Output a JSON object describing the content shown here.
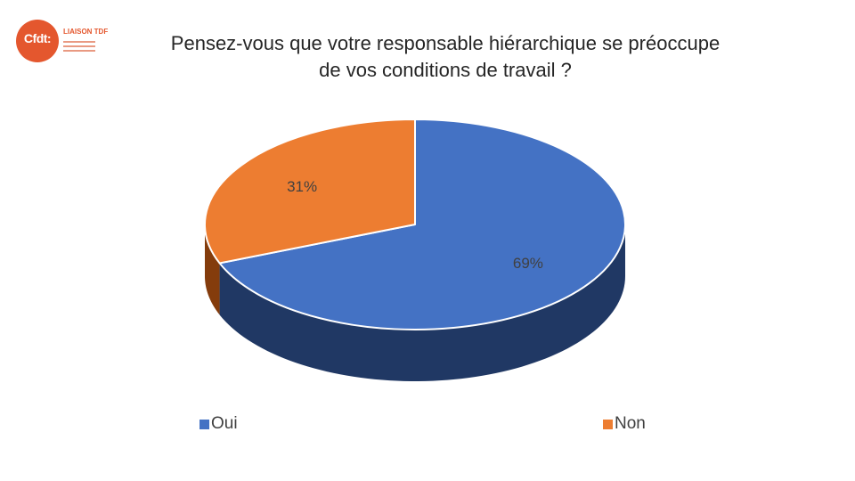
{
  "logo": {
    "text": "Cfdt:",
    "subtext": "LIAISON TDF"
  },
  "chart_data": {
    "type": "pie",
    "title": "Pensez-vous que votre responsable hiérarchique se préoccupe de vos conditions de travail ?",
    "title_lines": [
      "Pensez-vous que votre responsable hiérarchique se préoccupe",
      "de vos conditions de travail ?"
    ],
    "categories": [
      "Oui",
      "Non"
    ],
    "values": [
      69,
      31
    ],
    "data_labels": [
      "69%",
      "31%"
    ],
    "colors": [
      "#4472c4",
      "#ed7d31"
    ],
    "side_colors": [
      "#203864",
      "#843c0c"
    ],
    "legend_position": "bottom",
    "style": "3d"
  }
}
